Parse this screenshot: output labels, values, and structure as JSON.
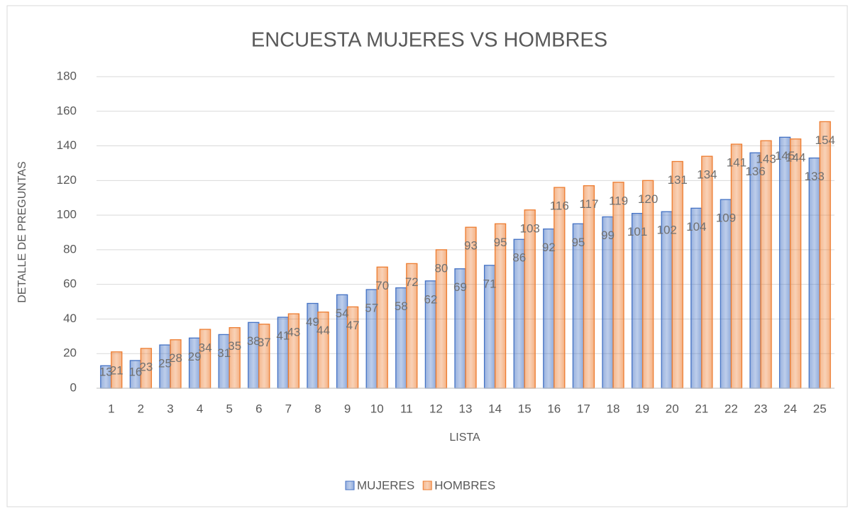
{
  "chart_data": {
    "type": "bar",
    "title": "ENCUESTA  MUJERES VS HOMBRES",
    "x_label": "LISTA",
    "y_label": "DETALLE DE PREGUNTAS",
    "categories": [
      "1",
      "2",
      "3",
      "4",
      "5",
      "6",
      "7",
      "8",
      "9",
      "10",
      "11",
      "12",
      "13",
      "14",
      "15",
      "16",
      "17",
      "18",
      "19",
      "20",
      "21",
      "22",
      "23",
      "24",
      "25"
    ],
    "series": [
      {
        "name": "MUJERES",
        "color": "#4472c4",
        "values": [
          13,
          16,
          25,
          29,
          31,
          38,
          41,
          49,
          54,
          57,
          58,
          62,
          69,
          71,
          86,
          92,
          95,
          99,
          101,
          102,
          104,
          109,
          136,
          145,
          133
        ]
      },
      {
        "name": "HOMBRES",
        "color": "#ed7d31",
        "values": [
          21,
          23,
          28,
          34,
          35,
          37,
          43,
          44,
          47,
          70,
          72,
          80,
          93,
          95,
          103,
          116,
          117,
          119,
          120,
          131,
          134,
          141,
          143,
          144,
          154
        ]
      }
    ],
    "ylim": [
      0,
      180
    ],
    "yticks": [
      0,
      20,
      40,
      60,
      80,
      100,
      120,
      140,
      160,
      180
    ],
    "grid": true,
    "legend": "bottom"
  }
}
